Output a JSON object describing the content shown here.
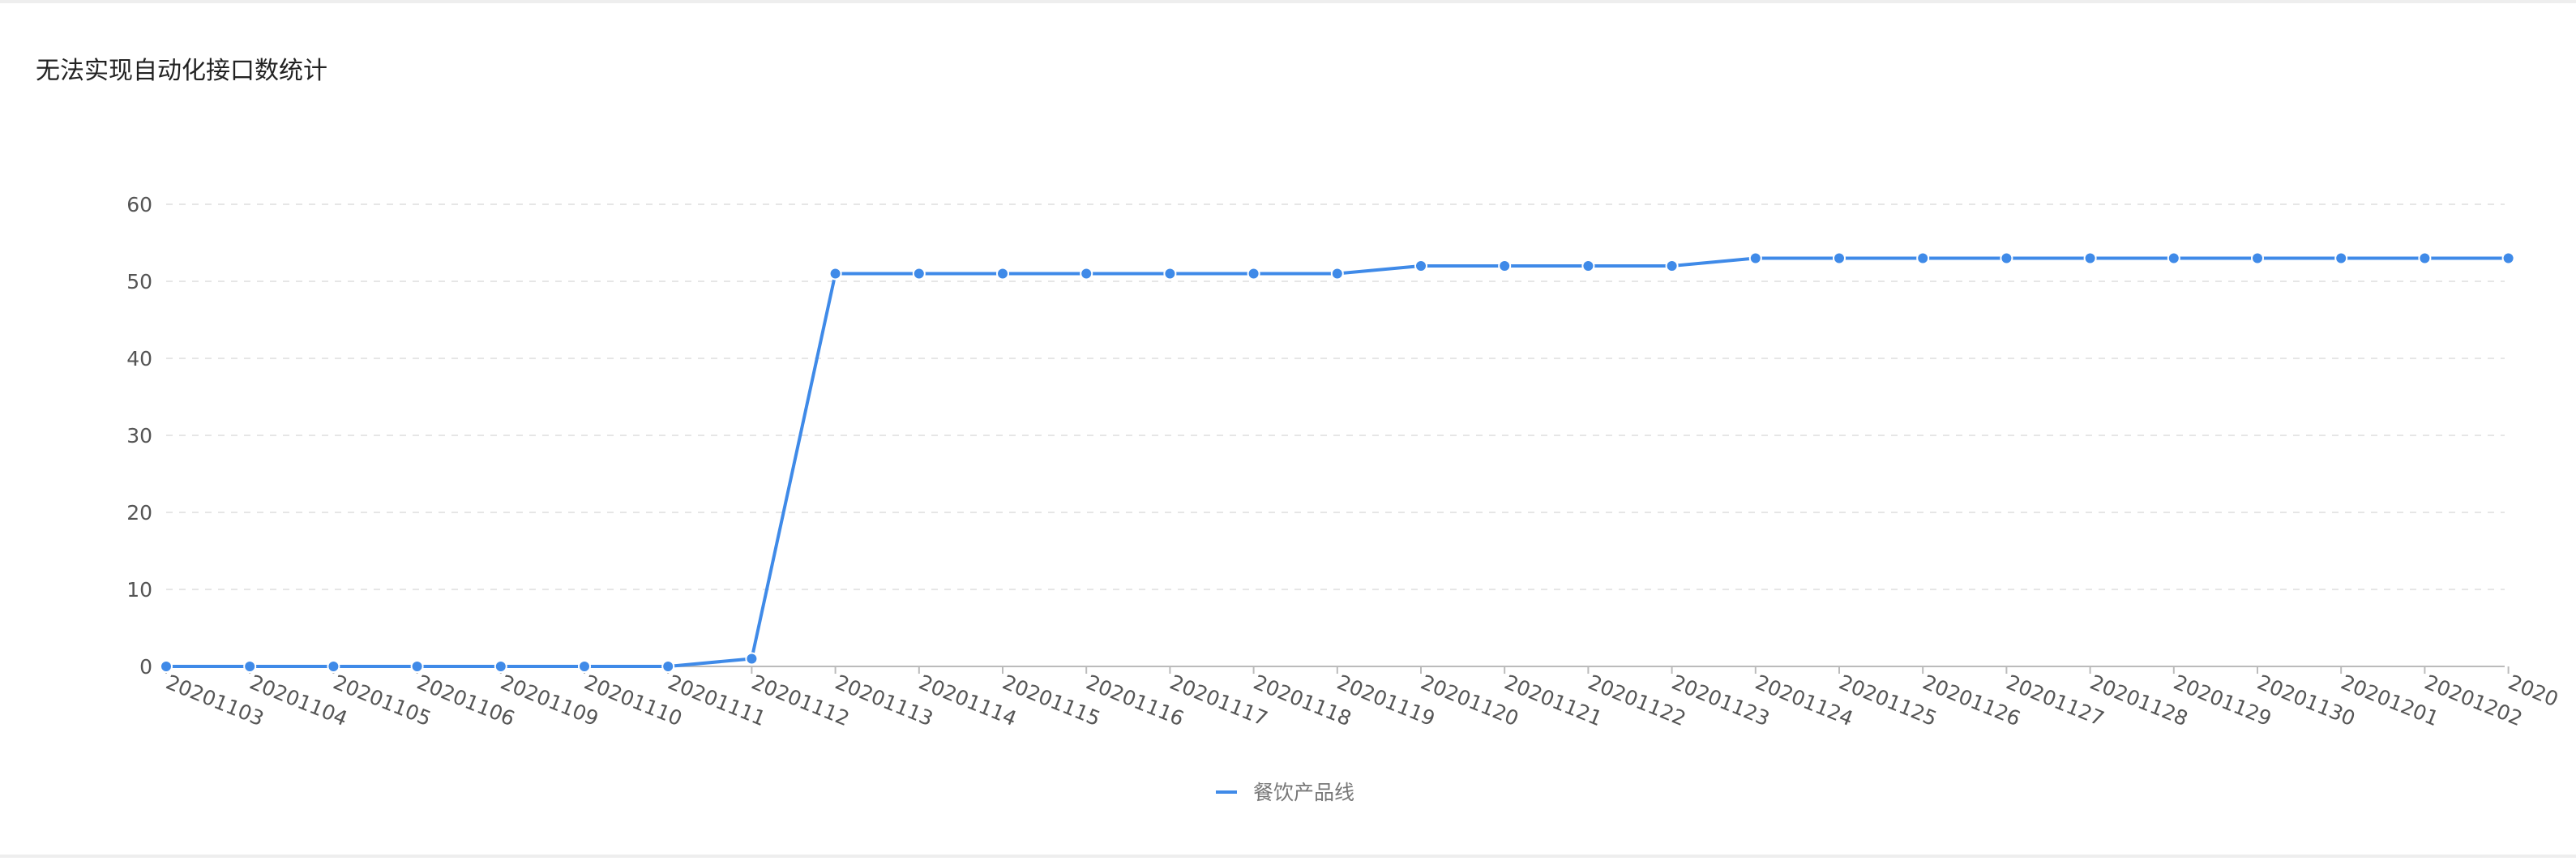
{
  "chart_data": {
    "type": "line",
    "title": "无法实现自动化接口数统计",
    "xlabel": "",
    "ylabel": "",
    "ylim": [
      0,
      60
    ],
    "yticks": [
      0,
      10,
      20,
      30,
      40,
      50,
      60
    ],
    "grid": true,
    "legend_position": "bottom-center",
    "categories": [
      "20201103",
      "20201104",
      "20201105",
      "20201106",
      "20201109",
      "20201110",
      "20201111",
      "20201112",
      "20201113",
      "20201114",
      "20201115",
      "20201116",
      "20201117",
      "20201118",
      "20201119",
      "20201120",
      "20201121",
      "20201122",
      "20201123",
      "20201124",
      "20201125",
      "20201126",
      "20201127",
      "20201128",
      "20201129",
      "20201130",
      "20201201",
      "20201202",
      "2020"
    ],
    "series": [
      {
        "name": "餐饮产品线",
        "color": "#3f8ae8",
        "values": [
          0,
          0,
          0,
          0,
          0,
          0,
          0,
          1,
          51,
          51,
          51,
          51,
          51,
          51,
          51,
          52,
          52,
          52,
          52,
          53,
          53,
          53,
          53,
          53,
          53,
          53,
          53,
          53,
          53
        ]
      }
    ]
  }
}
